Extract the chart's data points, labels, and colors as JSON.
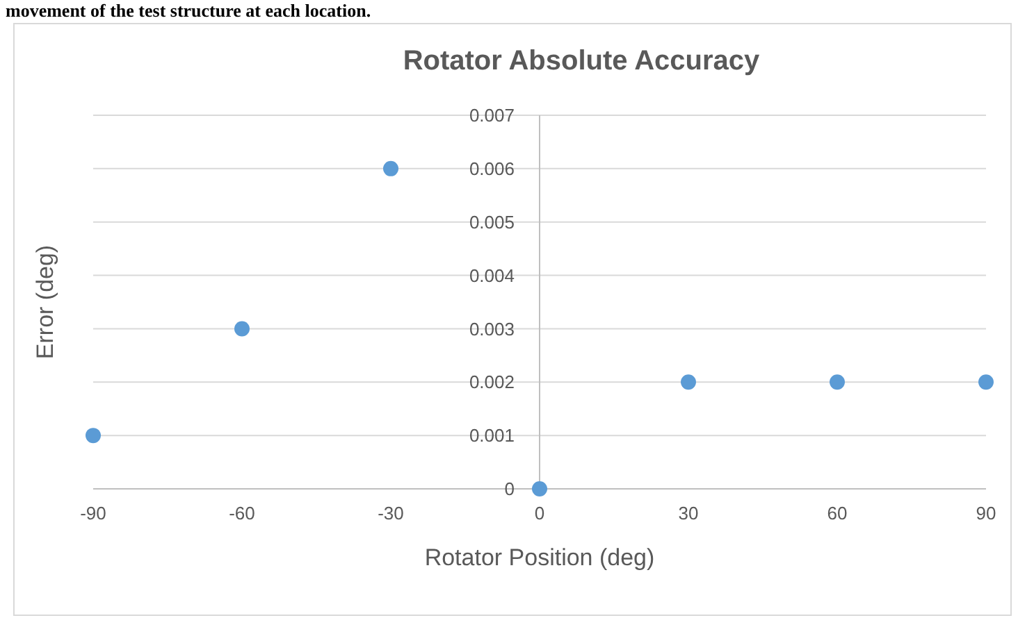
{
  "chart_data": {
    "type": "scatter",
    "title": "Rotator Absolute Accuracy",
    "xlabel": "Rotator Position (deg)",
    "ylabel": "Error (deg)",
    "annotations": [
      "movement of the test structure at each location."
    ],
    "x": [
      -90,
      -60,
      -30,
      0,
      30,
      60,
      90
    ],
    "series": [
      {
        "color": "#5b9bd5",
        "values": [
          0.001,
          0.003,
          0.006,
          0,
          0.002,
          0.002,
          0.002
        ]
      }
    ],
    "xlim": [
      -90,
      90
    ],
    "xticks": [
      -90,
      -60,
      -30,
      0,
      30,
      60,
      90
    ],
    "ylim": [
      0,
      0.007
    ],
    "yticks": [
      0,
      0.001,
      0.002,
      0.003,
      0.004,
      0.005,
      0.006,
      0.007
    ],
    "grid": "y",
    "marker": "circle"
  }
}
